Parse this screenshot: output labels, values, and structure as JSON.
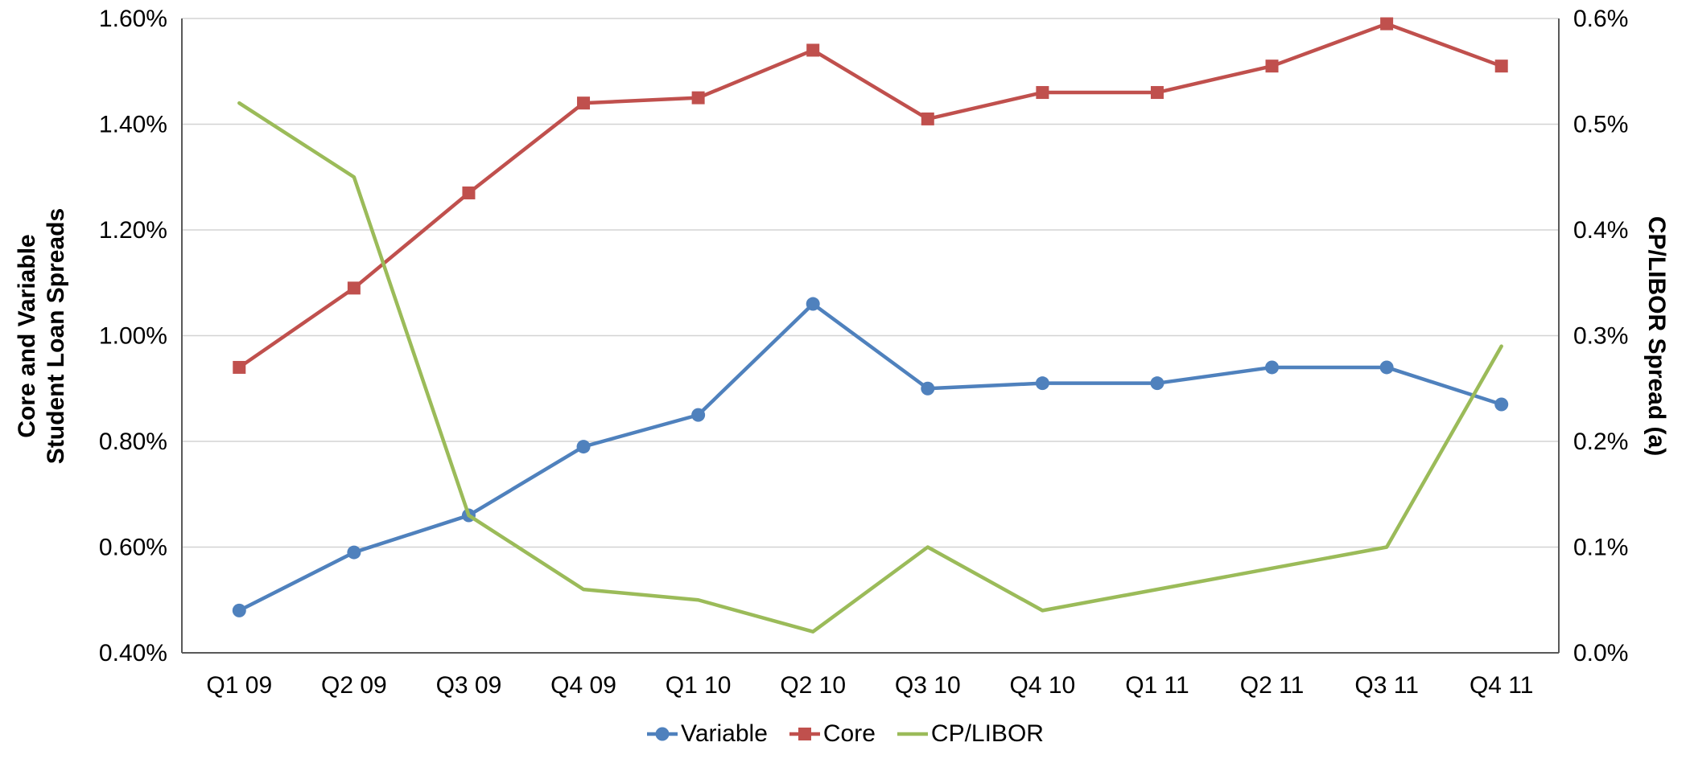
{
  "chart_data": {
    "type": "line",
    "title": "",
    "categories": [
      "Q1 09",
      "Q2 09",
      "Q3 09",
      "Q4 09",
      "Q1 10",
      "Q2 10",
      "Q3 10",
      "Q4 10",
      "Q1 11",
      "Q2 11",
      "Q3 11",
      "Q4 11"
    ],
    "series": [
      {
        "name": "Variable",
        "axis": "left",
        "color": "#4f81bd",
        "marker": "circle",
        "values": [
          0.48,
          0.59,
          0.66,
          0.79,
          0.85,
          1.06,
          0.9,
          0.91,
          0.91,
          0.94,
          0.94,
          0.87
        ]
      },
      {
        "name": "Core",
        "axis": "left",
        "color": "#c0504d",
        "marker": "square",
        "values": [
          0.94,
          1.09,
          1.27,
          1.44,
          1.45,
          1.54,
          1.41,
          1.46,
          1.46,
          1.51,
          1.59,
          1.51
        ]
      },
      {
        "name": "CP/LIBOR",
        "axis": "right",
        "color": "#9bbb59",
        "marker": "none",
        "values": [
          0.52,
          0.45,
          0.13,
          0.06,
          0.05,
          0.02,
          0.1,
          0.04,
          0.06,
          0.08,
          0.1,
          0.29
        ]
      }
    ],
    "left_axis": {
      "title_line1": "Core and Variable",
      "title_line2": "Student Loan Spreads",
      "min": 0.4,
      "max": 1.6,
      "tick_values": [
        0.4,
        0.6,
        0.8,
        1.0,
        1.2,
        1.4,
        1.6
      ],
      "ticks": [
        "0.40%",
        "0.60%",
        "0.80%",
        "1.00%",
        "1.20%",
        "1.40%",
        "1.60%"
      ]
    },
    "right_axis": {
      "title": "CP/LIBOR  Spread (a)",
      "min": 0.0,
      "max": 0.6,
      "tick_values": [
        0.0,
        0.1,
        0.2,
        0.3,
        0.4,
        0.5,
        0.6
      ],
      "ticks": [
        "0.0%",
        "0.1%",
        "0.2%",
        "0.3%",
        "0.4%",
        "0.5%",
        "0.6%"
      ]
    },
    "legend_position": "bottom",
    "grid": "horizontal",
    "grid_color": "#d3d3d3",
    "axis_color": "#595959",
    "text_color": "#000000"
  }
}
